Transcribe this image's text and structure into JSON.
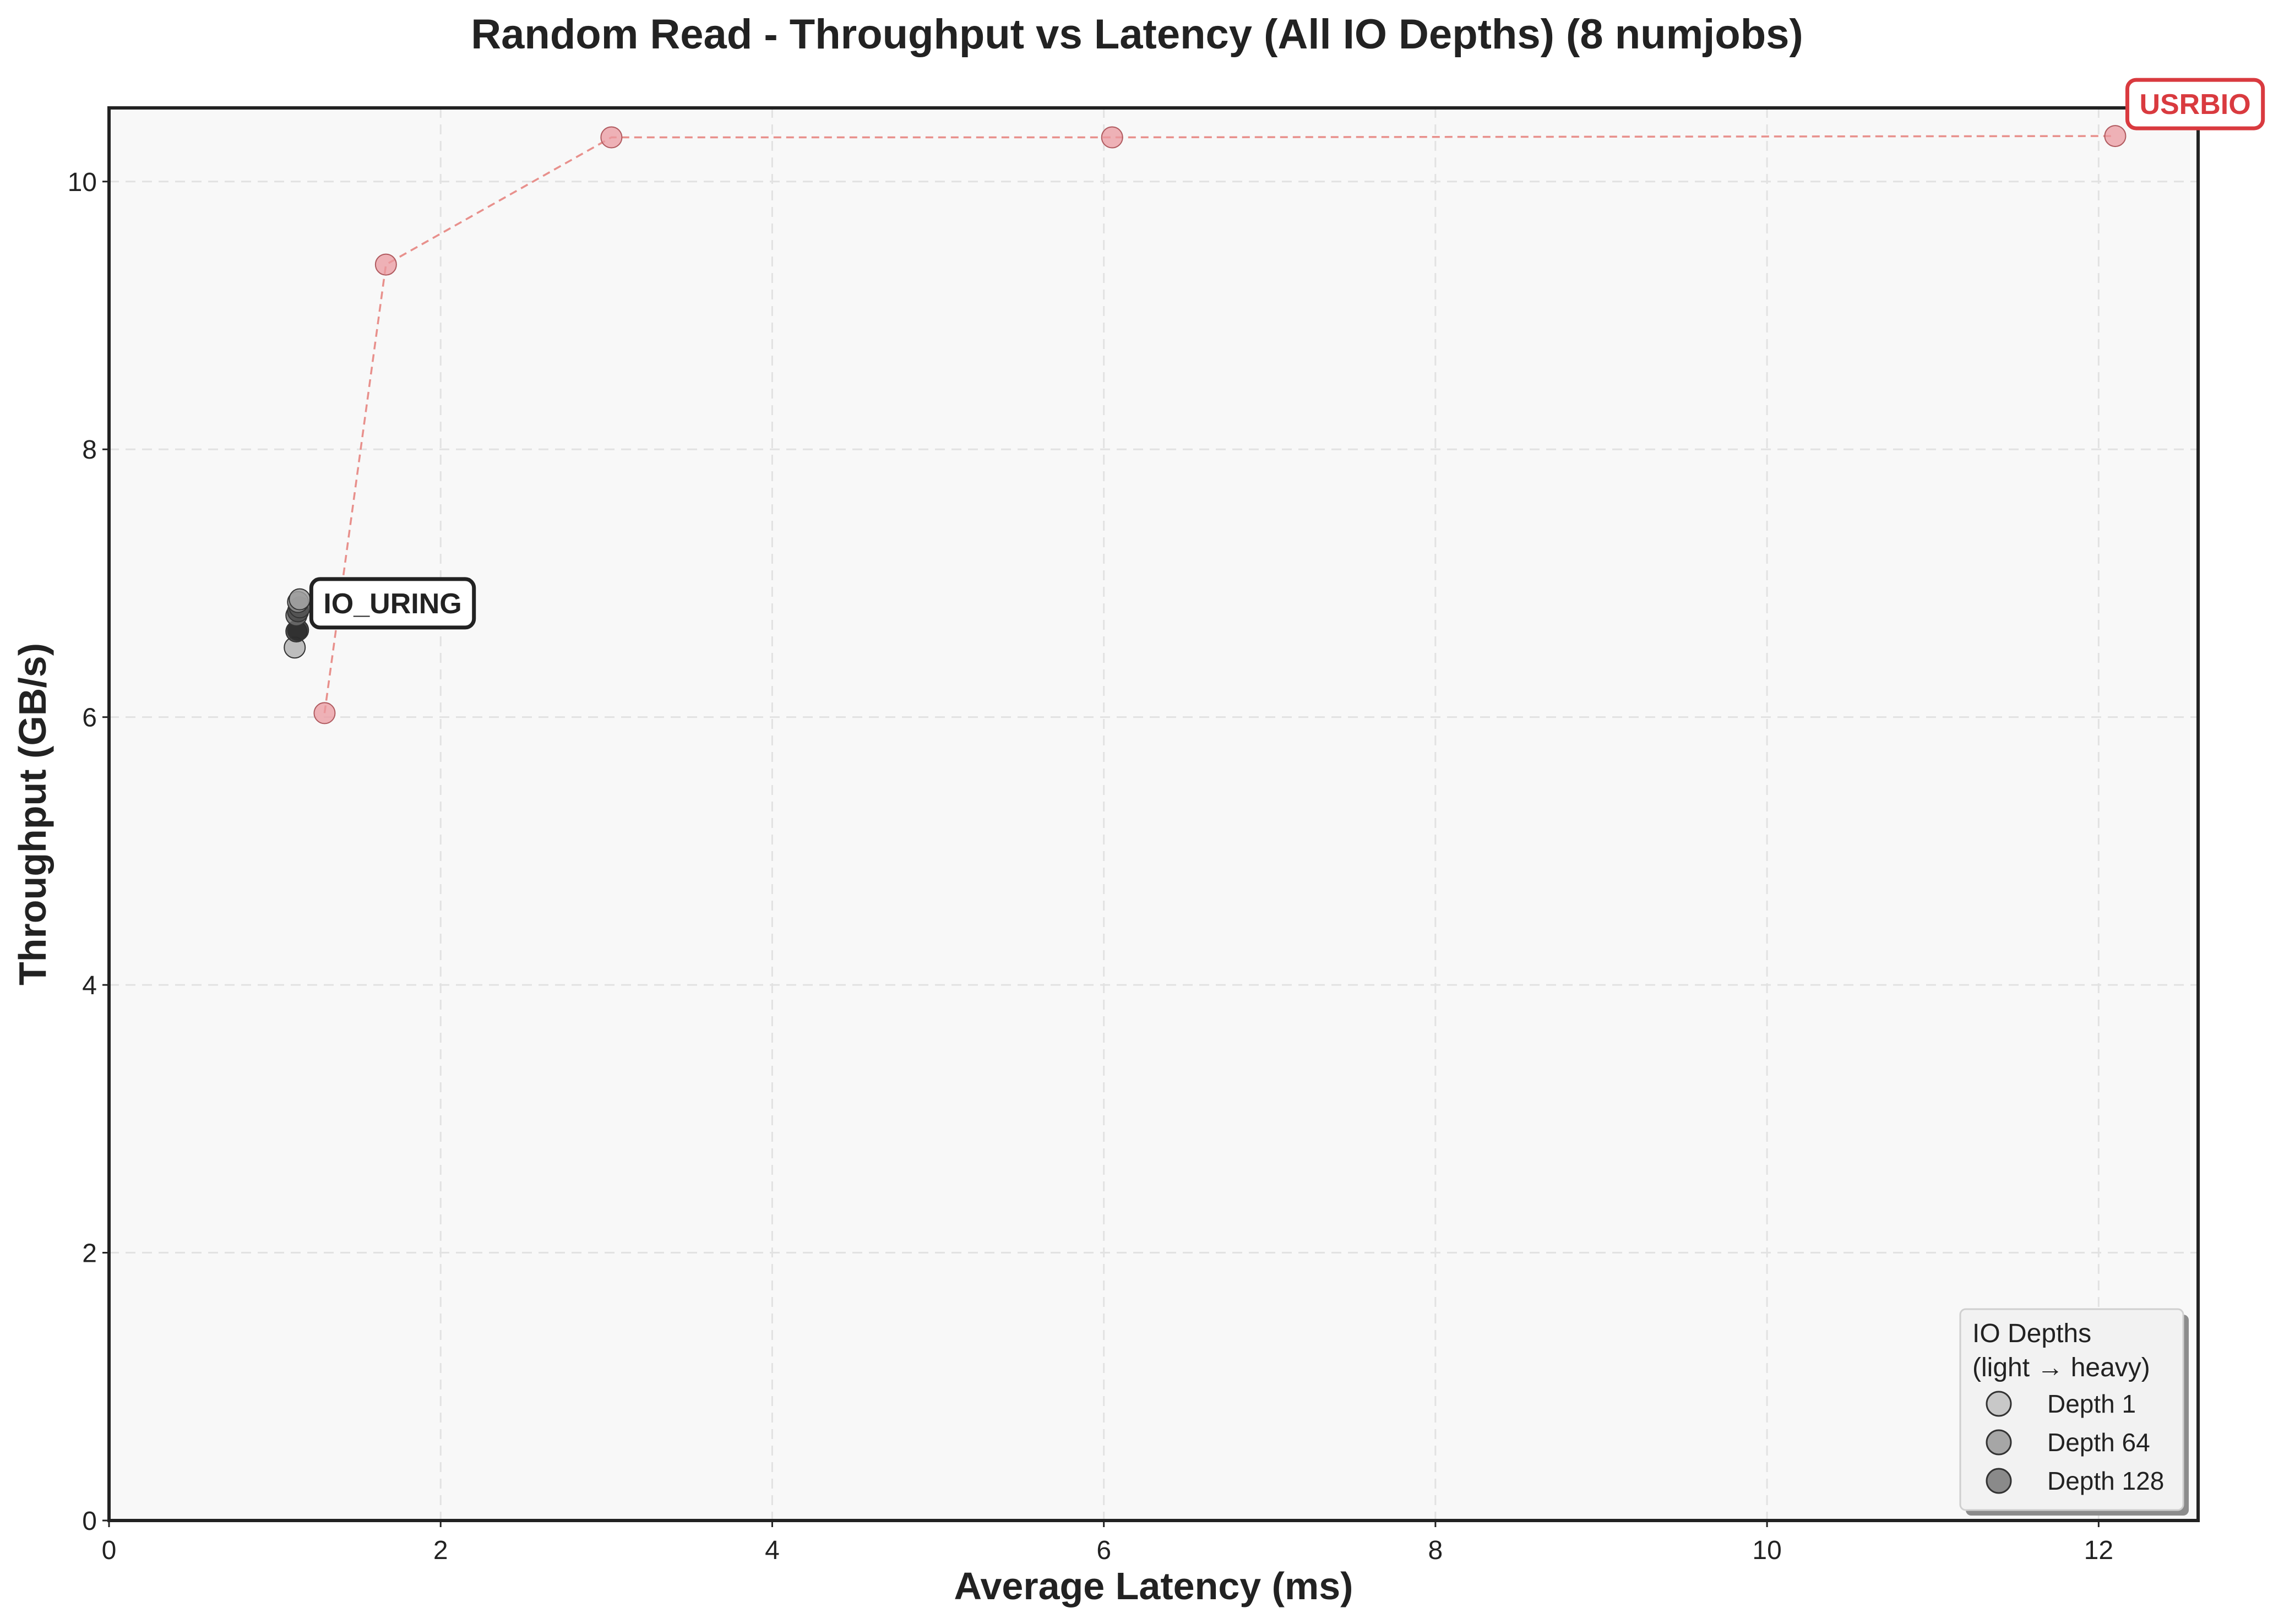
{
  "chart_data": {
    "type": "scatter",
    "title": "Random Read - Throughput vs Latency (All IO Depths) (8 numjobs)",
    "xlabel": "Average Latency (ms)",
    "ylabel": "Throughput (GB/s)",
    "xlim": [
      0,
      12.6
    ],
    "ylim": [
      0,
      10.55
    ],
    "xticks": [
      0,
      2,
      4,
      6,
      8,
      10,
      12
    ],
    "yticks": [
      0,
      2,
      4,
      6,
      8,
      10
    ],
    "grid": true,
    "legend": {
      "title_line1": "IO Depths",
      "title_line2": "(light → heavy)",
      "placement": "lower-right",
      "entries": [
        {
          "label": "Depth 1",
          "shade": "#c8c8c8"
        },
        {
          "label": "Depth 64",
          "shade": "#a6a6a6"
        },
        {
          "label": "Depth 128",
          "shade": "#8a8a8a"
        }
      ]
    },
    "series": [
      {
        "name": "USRBIO",
        "color": "#d93a3f",
        "point_color": "#eb9aa0",
        "line_color": "#e8908c",
        "connected": true,
        "points": [
          {
            "x": 1.3,
            "y": 6.03
          },
          {
            "x": 1.67,
            "y": 9.38
          },
          {
            "x": 3.03,
            "y": 10.33
          },
          {
            "x": 6.05,
            "y": 10.33
          },
          {
            "x": 12.1,
            "y": 10.34
          }
        ]
      },
      {
        "name": "IO_URING",
        "color": "#222222",
        "connected": false,
        "points": [
          {
            "x": 1.12,
            "y": 6.52,
            "shade": "#b4b4b4"
          },
          {
            "x": 1.13,
            "y": 6.64,
            "shade": "#3a3a3a"
          },
          {
            "x": 1.14,
            "y": 6.65,
            "shade": "#2a2a2a"
          },
          {
            "x": 1.13,
            "y": 6.76,
            "shade": "#6e6e6e"
          },
          {
            "x": 1.14,
            "y": 6.79,
            "shade": "#4a4a4a"
          },
          {
            "x": 1.15,
            "y": 6.82,
            "shade": "#555555"
          },
          {
            "x": 1.14,
            "y": 6.86,
            "shade": "#8e8e8e"
          },
          {
            "x": 1.15,
            "y": 6.88,
            "shade": "#a0a0a0"
          }
        ]
      }
    ]
  }
}
